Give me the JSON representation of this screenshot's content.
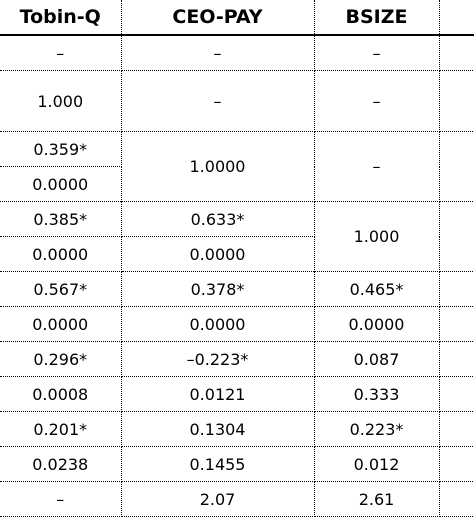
{
  "headers": [
    "Tobin-Q",
    "CEO-PAY",
    "BSIZE"
  ],
  "rows": {
    "r1": {
      "c0": "–",
      "c1": "–",
      "c2": "–"
    },
    "r2": {
      "c0": "1.000",
      "c1": "–",
      "c2": "–"
    },
    "r3": {
      "c0": "0.359*",
      "c1": "1.0000",
      "c2": "–"
    },
    "r4": {
      "c0": "0.0000"
    },
    "r5": {
      "c0": "0.385*",
      "c1": "0.633*",
      "c2": "1.000"
    },
    "r6": {
      "c0": "0.0000",
      "c1": "0.0000"
    },
    "r7": {
      "c0": "0.567*",
      "c1": "0.378*",
      "c2": "0.465*"
    },
    "r8": {
      "c0": "0.0000",
      "c1": "0.0000",
      "c2": "0.0000"
    },
    "r9": {
      "c0": "0.296*",
      "c1": "–0.223*",
      "c2": "0.087"
    },
    "r10": {
      "c0": "0.0008",
      "c1": "0.0121",
      "c2": "0.333"
    },
    "r11": {
      "c0": "0.201*",
      "c1": "0.1304",
      "c2": "0.223*"
    },
    "r12": {
      "c0": "0.0238",
      "c1": "0.1455",
      "c2": "0.012"
    },
    "r13": {
      "c0": "–",
      "c1": "2.07",
      "c2": "2.61"
    }
  }
}
